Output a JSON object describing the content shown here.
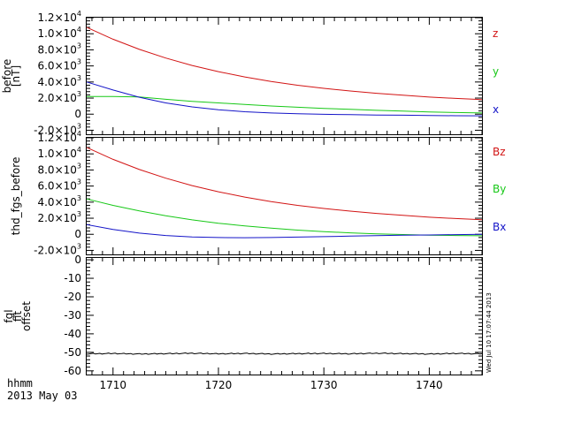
{
  "chart_data": [
    {
      "type": "line",
      "ylabel": "before [nT]",
      "ylim": [
        -2500,
        12000
      ],
      "x": [
        1707.5,
        1710,
        1712.5,
        1715,
        1717.5,
        1720,
        1722.5,
        1725,
        1727.5,
        1730,
        1732.5,
        1735,
        1737.5,
        1740,
        1742.5,
        1745
      ],
      "series": [
        {
          "name": "z",
          "color": "#d21414",
          "values": [
            10800,
            9320,
            8060,
            6980,
            6060,
            5290,
            4630,
            4070,
            3600,
            3210,
            2880,
            2600,
            2350,
            2130,
            1960,
            1820
          ]
        },
        {
          "name": "y",
          "color": "#17c817",
          "values": [
            2200,
            2200,
            2150,
            1850,
            1600,
            1400,
            1200,
            1020,
            860,
            720,
            600,
            480,
            380,
            280,
            200,
            150
          ]
        },
        {
          "name": "x",
          "color": "#1414c8",
          "values": [
            4000,
            3000,
            2100,
            1400,
            900,
            550,
            300,
            150,
            50,
            -20,
            -60,
            -100,
            -130,
            -160,
            -190,
            -200
          ]
        }
      ]
    },
    {
      "type": "line",
      "ylabel": "thd_fgs_before",
      "ylim": [
        -2500,
        12000
      ],
      "x": [
        1707.5,
        1710,
        1712.5,
        1715,
        1717.5,
        1720,
        1722.5,
        1725,
        1727.5,
        1730,
        1732.5,
        1735,
        1737.5,
        1740,
        1742.5,
        1745
      ],
      "series": [
        {
          "name": "Bz",
          "color": "#d21414",
          "values": [
            10800,
            9320,
            8060,
            6980,
            6060,
            5290,
            4630,
            4070,
            3600,
            3210,
            2880,
            2600,
            2350,
            2130,
            1960,
            1820
          ]
        },
        {
          "name": "By",
          "color": "#17c817",
          "values": [
            4400,
            3600,
            2900,
            2300,
            1800,
            1380,
            1040,
            760,
            520,
            330,
            180,
            60,
            -30,
            -100,
            -150,
            -180
          ]
        },
        {
          "name": "Bx",
          "color": "#1414c8",
          "values": [
            1200,
            600,
            150,
            -150,
            -320,
            -400,
            -420,
            -400,
            -350,
            -290,
            -230,
            -170,
            -120,
            -80,
            -40,
            -10
          ]
        }
      ]
    },
    {
      "type": "line",
      "ylabel": "fgl fit offset",
      "ylim": [
        -62,
        1
      ],
      "x": [
        1707.5,
        1710,
        1712.5,
        1715,
        1717.5,
        1720,
        1722.5,
        1725,
        1727.5,
        1730,
        1732.5,
        1735,
        1737.5,
        1740,
        1742.5,
        1745
      ],
      "series": [
        {
          "color": "#000000",
          "values": [
            -50.8,
            -50.6,
            -50.9,
            -50.7,
            -50.5,
            -50.8,
            -50.6,
            -50.9,
            -50.7,
            -50.6,
            -50.8,
            -50.5,
            -50.7,
            -50.9,
            -50.6,
            -50.8
          ]
        }
      ]
    }
  ],
  "axes": {
    "top_yticks": [
      {
        "m": "1.2",
        "e": "4",
        "v": 12000
      },
      {
        "m": "1.0",
        "e": "4",
        "v": 10000
      },
      {
        "m": "8.0",
        "e": "3",
        "v": 8000
      },
      {
        "m": "6.0",
        "e": "3",
        "v": 6000
      },
      {
        "m": "4.0",
        "e": "3",
        "v": 4000
      },
      {
        "m": "2.0",
        "e": "3",
        "v": 2000
      },
      {
        "m": "0",
        "e": "",
        "v": 0
      },
      {
        "m": "-2.0",
        "e": "3",
        "v": -2000
      }
    ],
    "mid_yticks": [
      {
        "m": "1.2",
        "e": "4",
        "v": 12000
      },
      {
        "m": "1.0",
        "e": "4",
        "v": 10000
      },
      {
        "m": "8.0",
        "e": "3",
        "v": 8000
      },
      {
        "m": "6.0",
        "e": "3",
        "v": 6000
      },
      {
        "m": "4.0",
        "e": "3",
        "v": 4000
      },
      {
        "m": "2.0",
        "e": "3",
        "v": 2000
      },
      {
        "m": "0",
        "e": "",
        "v": 0
      },
      {
        "m": "-2.0",
        "e": "3",
        "v": -2000
      }
    ],
    "bot_yticks": [
      {
        "m": "0",
        "v": 0
      },
      {
        "m": "-10",
        "v": -10
      },
      {
        "m": "-20",
        "v": -20
      },
      {
        "m": "-30",
        "v": -30
      },
      {
        "m": "-40",
        "v": -40
      },
      {
        "m": "-50",
        "v": -50
      },
      {
        "m": "-60",
        "v": -60
      }
    ],
    "xticks": [
      {
        "label": "1710",
        "v": 1710
      },
      {
        "label": "1720",
        "v": 1720
      },
      {
        "label": "1730",
        "v": 1730
      },
      {
        "label": "1740",
        "v": 1740
      }
    ],
    "xlim": [
      1707.5,
      1745
    ]
  },
  "labels": {
    "top_ylabel_line1": "before",
    "top_ylabel_line2": "[nT]",
    "mid_ylabel": "thd_fgs_before",
    "bot_ylabel_line1": "fgl",
    "bot_ylabel_line2": "fit",
    "bot_ylabel_line3": "offset",
    "x_unit": "hhmm",
    "x_date": "2013 May 03",
    "timestamp": "Wed Jul 10 17:07:44 2013"
  }
}
